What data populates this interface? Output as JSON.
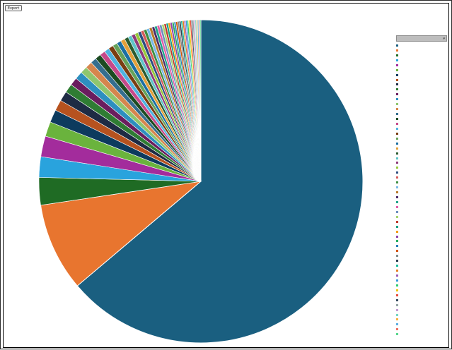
{
  "window": {
    "button_label": "Export"
  },
  "chart_data": {
    "type": "pie",
    "title": "",
    "legend_placement": "right",
    "values": [
      65,
      9,
      2.8,
      2.1,
      2.1,
      1.5,
      1.3,
      1.1,
      1.0,
      0.9,
      0.8,
      0.8,
      0.7,
      0.7,
      0.6,
      0.6,
      0.55,
      0.5,
      0.5,
      0.48,
      0.45,
      0.43,
      0.4,
      0.38,
      0.36,
      0.34,
      0.32,
      0.3,
      0.3,
      0.29,
      0.28,
      0.27,
      0.26,
      0.25,
      0.24,
      0.23,
      0.22,
      0.21,
      0.2,
      0.2,
      0.19,
      0.18,
      0.18,
      0.17,
      0.17,
      0.16,
      0.16,
      0.15,
      0.15,
      0.15,
      0.14,
      0.14,
      0.13,
      0.13,
      0.13,
      0.12,
      0.12,
      0.12,
      0.11,
      0.11
    ],
    "colors": [
      "#1a5f80",
      "#e8752f",
      "#1f6b24",
      "#29a3dd",
      "#a32c9c",
      "#6ab33d",
      "#0d3b5e",
      "#b6521f",
      "#1e2b44",
      "#2f7c33",
      "#6a1d5e",
      "#2d8fbf",
      "#8fc66d",
      "#d6864d",
      "#356e8e",
      "#1c4b21",
      "#c6498a",
      "#4fb3e0",
      "#7a3d12",
      "#66a35b",
      "#1b6fa3",
      "#e3a03a",
      "#2b5b2f",
      "#5ec4c9",
      "#8e3a7a",
      "#98c93c",
      "#2c4d80",
      "#d45b5b",
      "#3e8e41",
      "#79b9e6",
      "#b87a2a",
      "#4b2d6b",
      "#1fa38a",
      "#e05fa8",
      "#6c8ebf",
      "#a5d36f",
      "#c0392b",
      "#16a085",
      "#f39c12",
      "#8e44ad",
      "#27ae60",
      "#2980b9",
      "#d35400",
      "#7f8c8d",
      "#2c3e50",
      "#1abc9c",
      "#e67e22",
      "#9b59b6",
      "#3498db",
      "#2ecc71",
      "#f1c40f",
      "#e74c3c",
      "#34495e",
      "#95a5a6",
      "#c39bd3",
      "#76d7c4",
      "#f5b041",
      "#5dade2",
      "#ec7063",
      "#58d68d"
    ],
    "legend_entries": []
  }
}
